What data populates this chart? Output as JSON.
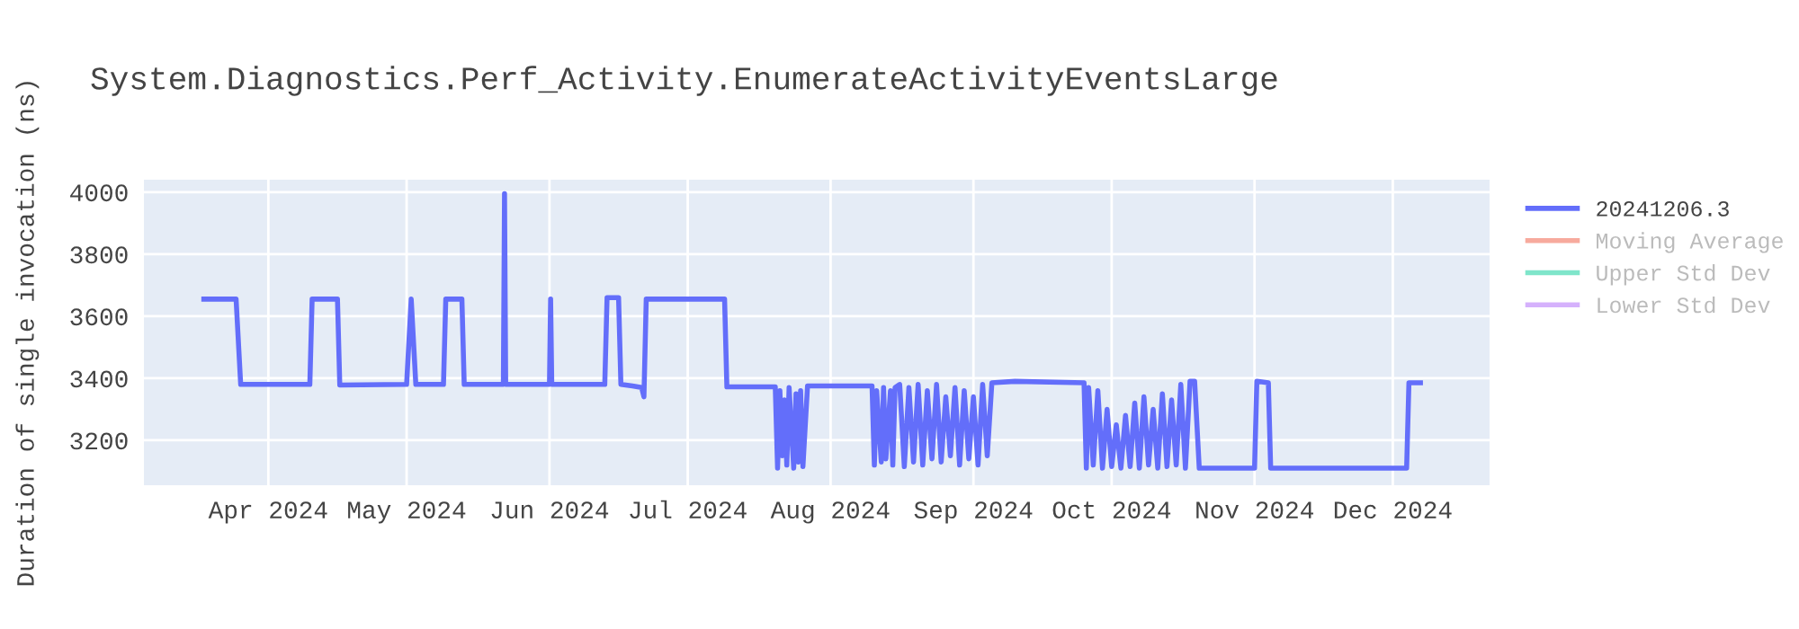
{
  "chart_data": {
    "type": "line",
    "title": "System.Diagnostics.Perf_Activity.EnumerateActivityEventsLarge",
    "ylabel": "Duration of single invocation (ns)",
    "x": [
      "2024-03-18",
      "2024-03-25",
      "2024-03-26",
      "2024-04-10",
      "2024-04-10T12:00",
      "2024-04-16",
      "2024-04-16T12:00",
      "2024-05-01",
      "2024-05-02",
      "2024-05-03",
      "2024-05-09",
      "2024-05-09T12:00",
      "2024-05-13",
      "2024-05-13T12:00",
      "2024-05-22",
      "2024-05-22T06:00",
      "2024-05-22T12:00",
      "2024-06-01",
      "2024-06-01T06:00",
      "2024-06-01T12:00",
      "2024-06-13",
      "2024-06-13T12:00",
      "2024-06-16",
      "2024-06-16T12:00",
      "2024-06-19",
      "2024-06-21",
      "2024-06-21T12:00",
      "2024-06-22",
      "2024-07-09",
      "2024-07-09T12:00",
      "2024-07-20",
      "2024-07-20T12:00",
      "2024-07-21",
      "2024-07-21T12:00",
      "2024-07-22",
      "2024-07-22T12:00",
      "2024-07-23",
      "2024-07-24",
      "2024-07-24T12:00",
      "2024-07-25",
      "2024-07-25T12:00",
      "2024-07-26",
      "2024-07-27",
      "2024-08-10",
      "2024-08-10T12:00",
      "2024-08-11",
      "2024-08-12",
      "2024-08-12T12:00",
      "2024-08-13",
      "2024-08-14",
      "2024-08-14T12:00",
      "2024-08-15",
      "2024-08-16",
      "2024-08-17",
      "2024-08-18",
      "2024-08-19",
      "2024-08-20",
      "2024-08-21",
      "2024-08-22",
      "2024-08-23",
      "2024-08-24",
      "2024-08-25",
      "2024-08-26",
      "2024-08-27",
      "2024-08-28",
      "2024-08-29",
      "2024-08-30",
      "2024-08-31",
      "2024-09-01",
      "2024-09-02",
      "2024-09-03",
      "2024-09-04",
      "2024-09-05",
      "2024-09-10",
      "2024-09-25",
      "2024-09-25T12:00",
      "2024-09-26",
      "2024-09-27",
      "2024-09-28",
      "2024-09-29",
      "2024-09-30",
      "2024-10-01",
      "2024-10-02",
      "2024-10-03",
      "2024-10-04",
      "2024-10-05",
      "2024-10-06",
      "2024-10-07",
      "2024-10-08",
      "2024-10-09",
      "2024-10-10",
      "2024-10-11",
      "2024-10-12",
      "2024-10-13",
      "2024-10-14",
      "2024-10-15",
      "2024-10-16",
      "2024-10-17",
      "2024-10-18",
      "2024-10-19",
      "2024-10-20",
      "2024-11-01",
      "2024-11-01T12:00",
      "2024-11-04",
      "2024-11-04T12:00",
      "2024-12-04",
      "2024-12-04T12:00",
      "2024-12-07"
    ],
    "series": [
      {
        "name": "20241206.3",
        "color": "#636efa",
        "values": [
          3655,
          3655,
          3380,
          3380,
          3655,
          3655,
          3378,
          3380,
          3655,
          3380,
          3380,
          3655,
          3655,
          3380,
          3380,
          3995,
          3380,
          3380,
          3655,
          3380,
          3380,
          3660,
          3660,
          3380,
          3375,
          3370,
          3340,
          3655,
          3655,
          3372,
          3372,
          3110,
          3360,
          3150,
          3330,
          3120,
          3370,
          3110,
          3350,
          3130,
          3360,
          3115,
          3375,
          3375,
          3120,
          3360,
          3130,
          3370,
          3140,
          3360,
          3120,
          3370,
          3380,
          3115,
          3370,
          3130,
          3380,
          3120,
          3360,
          3140,
          3380,
          3130,
          3340,
          3150,
          3370,
          3120,
          3360,
          3140,
          3340,
          3120,
          3380,
          3150,
          3385,
          3390,
          3385,
          3110,
          3370,
          3120,
          3360,
          3110,
          3300,
          3115,
          3250,
          3110,
          3280,
          3115,
          3320,
          3110,
          3340,
          3120,
          3300,
          3110,
          3350,
          3115,
          3330,
          3120,
          3380,
          3110,
          3390,
          3390,
          3110,
          3110,
          3390,
          3385,
          3110,
          3110,
          3385,
          3385
        ]
      },
      {
        "name": "Moving Average",
        "color": "#ef553b",
        "values": [
          null,
          null,
          null,
          null,
          null,
          null,
          null,
          null,
          null,
          null,
          null,
          null,
          null,
          null,
          null,
          null,
          null,
          null,
          null,
          null,
          null,
          null,
          null,
          null,
          null,
          null,
          null,
          null,
          null,
          null,
          null,
          null,
          null,
          null,
          null,
          null,
          null,
          null,
          null,
          null,
          null,
          null,
          null,
          null,
          null,
          null,
          null,
          null,
          null,
          null,
          null,
          null,
          null,
          null,
          null,
          null,
          null,
          null,
          null,
          null,
          null,
          null,
          null,
          null,
          null,
          null,
          null,
          null,
          null,
          null,
          null,
          null,
          null,
          null,
          null,
          null,
          null,
          null,
          null,
          null,
          null,
          null,
          null,
          null,
          null,
          null,
          null,
          null,
          null,
          null,
          null,
          null,
          null,
          null,
          null,
          null,
          null,
          null,
          null,
          null,
          null,
          null,
          null,
          null,
          null,
          null,
          null,
          null
        ]
      },
      {
        "name": "Upper Std Dev",
        "color": "#00cc96",
        "values": [
          null,
          null,
          null,
          null,
          null,
          null,
          null,
          null,
          null,
          null,
          null,
          null,
          null,
          null,
          null,
          null,
          null,
          null,
          null,
          null,
          null,
          null,
          null,
          null,
          null,
          null,
          null,
          null,
          null,
          null,
          null,
          null,
          null,
          null,
          null,
          null,
          null,
          null,
          null,
          null,
          null,
          null,
          null,
          null,
          null,
          null,
          null,
          null,
          null,
          null,
          null,
          null,
          null,
          null,
          null,
          null,
          null,
          null,
          null,
          null,
          null,
          null,
          null,
          null,
          null,
          null,
          null,
          null,
          null,
          null,
          null,
          null,
          null,
          null,
          null,
          null,
          null,
          null,
          null,
          null,
          null,
          null,
          null,
          null,
          null,
          null,
          null,
          null,
          null,
          null,
          null,
          null,
          null,
          null,
          null,
          null,
          null,
          null,
          null,
          null,
          null,
          null,
          null,
          null,
          null,
          null,
          null,
          null
        ]
      },
      {
        "name": "Lower Std Dev",
        "color": "#ab63fa",
        "values": [
          null,
          null,
          null,
          null,
          null,
          null,
          null,
          null,
          null,
          null,
          null,
          null,
          null,
          null,
          null,
          null,
          null,
          null,
          null,
          null,
          null,
          null,
          null,
          null,
          null,
          null,
          null,
          null,
          null,
          null,
          null,
          null,
          null,
          null,
          null,
          null,
          null,
          null,
          null,
          null,
          null,
          null,
          null,
          null,
          null,
          null,
          null,
          null,
          null,
          null,
          null,
          null,
          null,
          null,
          null,
          null,
          null,
          null,
          null,
          null,
          null,
          null,
          null,
          null,
          null,
          null,
          null,
          null,
          null,
          null,
          null,
          null,
          null,
          null,
          null,
          null,
          null,
          null,
          null,
          null,
          null,
          null,
          null,
          null,
          null,
          null,
          null,
          null,
          null,
          null,
          null,
          null,
          null,
          null,
          null,
          null,
          null,
          null,
          null,
          null,
          null,
          null,
          null,
          null,
          null,
          null,
          null,
          null
        ]
      }
    ],
    "xlim": [
      "2024-03-05",
      "2024-12-22"
    ],
    "xticks": [
      {
        "value": "2024-04-01",
        "label": "Apr 2024"
      },
      {
        "value": "2024-05-01",
        "label": "May 2024"
      },
      {
        "value": "2024-06-01",
        "label": "Jun 2024"
      },
      {
        "value": "2024-07-01",
        "label": "Jul 2024"
      },
      {
        "value": "2024-08-01",
        "label": "Aug 2024"
      },
      {
        "value": "2024-09-01",
        "label": "Sep 2024"
      },
      {
        "value": "2024-10-01",
        "label": "Oct 2024"
      },
      {
        "value": "2024-11-01",
        "label": "Nov 2024"
      },
      {
        "value": "2024-12-01",
        "label": "Dec 2024"
      }
    ],
    "ylim": [
      3055,
      4040
    ],
    "yticks": [
      3200,
      3400,
      3600,
      3800,
      4000
    ],
    "grid": true,
    "legend": "top right",
    "marker": "none",
    "line_style": "solid"
  }
}
